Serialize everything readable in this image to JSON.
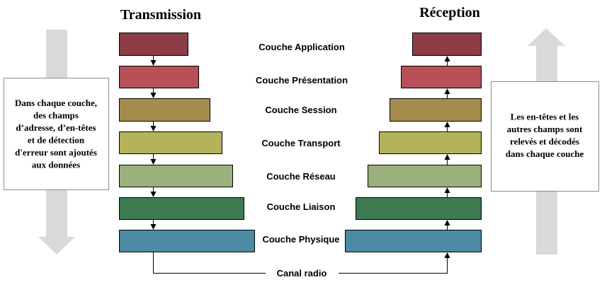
{
  "titles": {
    "transmission": "Transmission",
    "reception": "Réception"
  },
  "layers": [
    {
      "label": "Couche Application",
      "color": "#8c3d45"
    },
    {
      "label": "Couche Présentation",
      "color": "#b85058"
    },
    {
      "label": "Couche Session",
      "color": "#a58c4d"
    },
    {
      "label": "Couche Transport",
      "color": "#b4b35b"
    },
    {
      "label": "Couche Réseau",
      "color": "#9bb07c"
    },
    {
      "label": "Couche Liaison",
      "color": "#3c7a52"
    },
    {
      "label": "Couche Physique",
      "color": "#4d8aa3"
    }
  ],
  "left_note": {
    "lines": [
      "Dans chaque couche,",
      "des champs",
      "d’adresse, d’en-têtes",
      "et de détection",
      "d'erreur sont ajoutés",
      "aux données"
    ]
  },
  "right_note": {
    "lines": [
      "Les en-têtes et les",
      "autres champs sont",
      "relevés et décodés",
      "dans chaque couche"
    ]
  },
  "channel": {
    "label": "Canal radio"
  },
  "colors": {
    "side_arrow": "#d9d9d9",
    "note_border": "#8c8c8c"
  }
}
